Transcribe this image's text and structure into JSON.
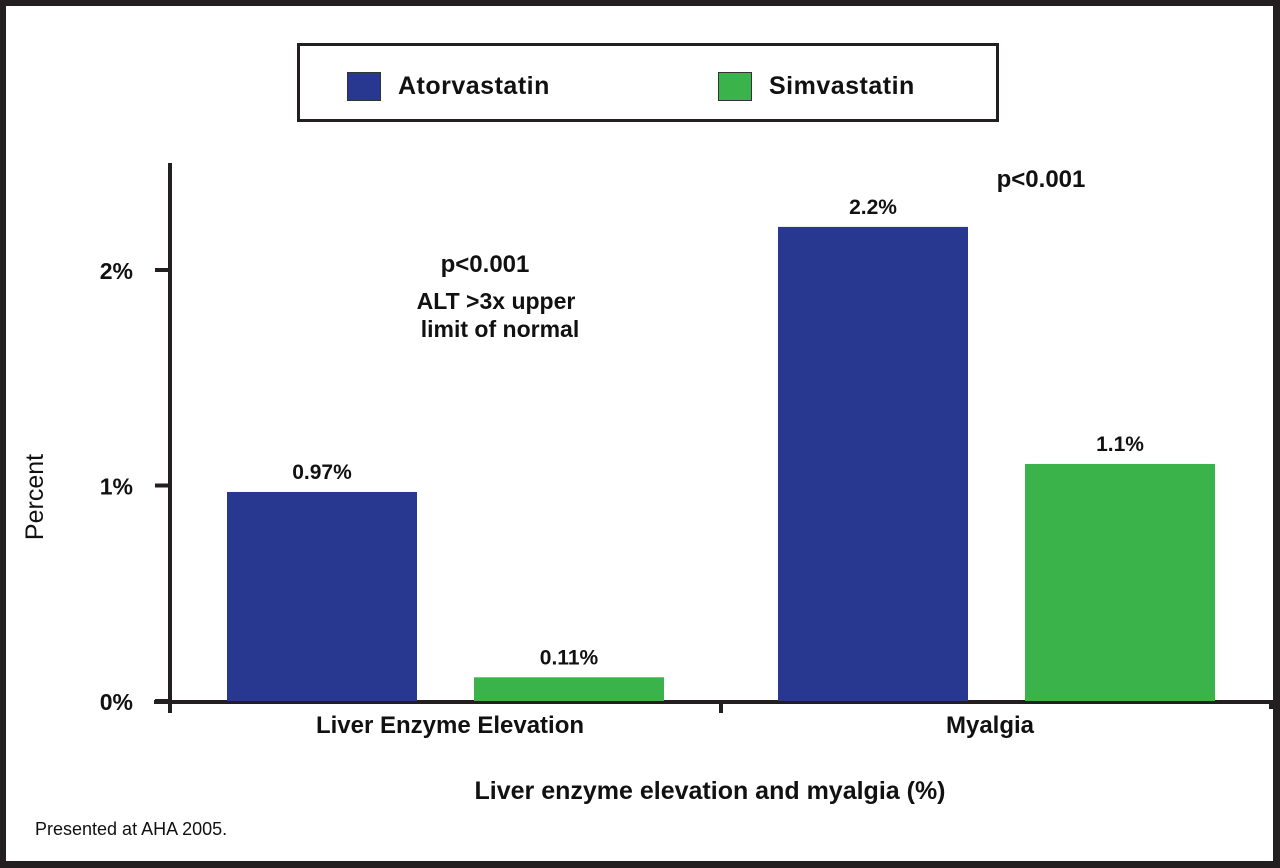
{
  "chart_data": {
    "type": "bar",
    "title": "",
    "xlabel": "Liver enzyme elevation and myalgia (%)",
    "ylabel": "Percent",
    "ylim": [
      0,
      2.5
    ],
    "yticks": [
      {
        "value": 0,
        "label": "0%"
      },
      {
        "value": 1,
        "label": "1%"
      },
      {
        "value": 2,
        "label": "2%"
      }
    ],
    "grid": false,
    "legend_position": "top-center",
    "categories": [
      "Liver Enzyme Elevation",
      "Myalgia"
    ],
    "series": [
      {
        "name": "Atorvastatin",
        "color": "#283891",
        "values": [
          0.97,
          2.2
        ],
        "labels": [
          "0.97%",
          "2.2%"
        ]
      },
      {
        "name": "Simvastatin",
        "color": "#3ab44a",
        "values": [
          0.11,
          1.1
        ],
        "labels": [
          "0.11%",
          "1.1%"
        ]
      }
    ],
    "annotations": [
      {
        "category": "Liver Enzyme Elevation",
        "lines": [
          "p<0.001",
          "ALT >3x upper",
          "limit of normal"
        ]
      },
      {
        "category": "Myalgia",
        "lines": [
          "p<0.001"
        ]
      }
    ]
  },
  "footnote": "Presented at AHA 2005.",
  "colors": {
    "frame": "#231f20",
    "axis": "#231f20",
    "background": "#ffffff"
  }
}
